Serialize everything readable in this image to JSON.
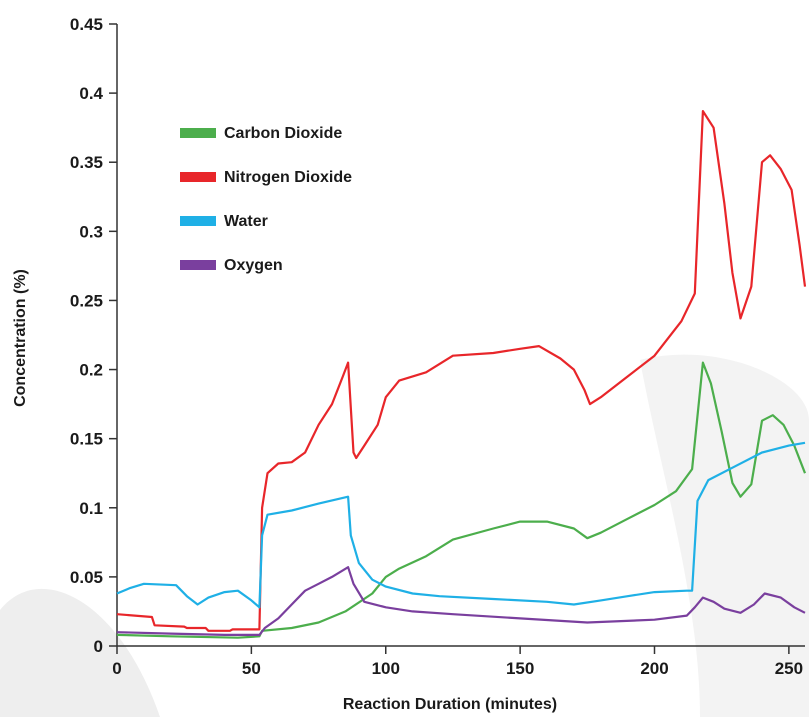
{
  "chart_data": {
    "type": "line",
    "title": "",
    "xlabel": "Reaction Duration (minutes)",
    "ylabel": "Concentration (%)",
    "xlim": [
      0,
      256
    ],
    "ylim": [
      0,
      0.45
    ],
    "x_ticks": [
      0,
      50,
      100,
      150,
      200,
      250
    ],
    "y_ticks": [
      0,
      0.05,
      0.1,
      0.15,
      0.2,
      0.25,
      0.3,
      0.35,
      0.4,
      0.45
    ],
    "x_tick_labels": [
      "0",
      "50",
      "100",
      "150",
      "200",
      "250"
    ],
    "y_tick_labels": [
      "0",
      "0.05",
      "0.1",
      "0.15",
      "0.2",
      "0.25",
      "0.3",
      "0.35",
      "0.4",
      "0.45"
    ],
    "grid": false,
    "legend_position": "top-left",
    "series": [
      {
        "name": "Carbon Dioxide",
        "color": "#4cae4c",
        "points": [
          [
            0,
            0.008
          ],
          [
            20,
            0.007
          ],
          [
            45,
            0.006
          ],
          [
            53,
            0.007
          ],
          [
            54,
            0.011
          ],
          [
            65,
            0.013
          ],
          [
            75,
            0.017
          ],
          [
            85,
            0.025
          ],
          [
            95,
            0.038
          ],
          [
            100,
            0.05
          ],
          [
            105,
            0.056
          ],
          [
            115,
            0.065
          ],
          [
            125,
            0.077
          ],
          [
            140,
            0.085
          ],
          [
            150,
            0.09
          ],
          [
            160,
            0.09
          ],
          [
            170,
            0.085
          ],
          [
            175,
            0.078
          ],
          [
            180,
            0.082
          ],
          [
            190,
            0.092
          ],
          [
            200,
            0.102
          ],
          [
            208,
            0.112
          ],
          [
            214,
            0.128
          ],
          [
            218,
            0.205
          ],
          [
            221,
            0.19
          ],
          [
            225,
            0.155
          ],
          [
            229,
            0.118
          ],
          [
            232,
            0.108
          ],
          [
            236,
            0.117
          ],
          [
            240,
            0.163
          ],
          [
            244,
            0.167
          ],
          [
            248,
            0.16
          ],
          [
            252,
            0.145
          ],
          [
            256,
            0.125
          ]
        ]
      },
      {
        "name": "Nitrogen Dioxide",
        "color": "#e8262a",
        "points": [
          [
            0,
            0.023
          ],
          [
            13,
            0.021
          ],
          [
            14,
            0.015
          ],
          [
            25,
            0.014
          ],
          [
            26,
            0.013
          ],
          [
            33,
            0.013
          ],
          [
            34,
            0.011
          ],
          [
            42,
            0.011
          ],
          [
            43,
            0.012
          ],
          [
            53,
            0.012
          ],
          [
            54,
            0.1
          ],
          [
            56,
            0.125
          ],
          [
            60,
            0.132
          ],
          [
            65,
            0.133
          ],
          [
            70,
            0.14
          ],
          [
            75,
            0.16
          ],
          [
            80,
            0.175
          ],
          [
            84,
            0.195
          ],
          [
            86,
            0.205
          ],
          [
            88,
            0.14
          ],
          [
            89,
            0.136
          ],
          [
            92,
            0.145
          ],
          [
            97,
            0.16
          ],
          [
            100,
            0.18
          ],
          [
            105,
            0.192
          ],
          [
            115,
            0.198
          ],
          [
            125,
            0.21
          ],
          [
            140,
            0.212
          ],
          [
            150,
            0.215
          ],
          [
            157,
            0.217
          ],
          [
            165,
            0.208
          ],
          [
            170,
            0.2
          ],
          [
            174,
            0.185
          ],
          [
            176,
            0.175
          ],
          [
            180,
            0.18
          ],
          [
            190,
            0.195
          ],
          [
            200,
            0.21
          ],
          [
            210,
            0.235
          ],
          [
            215,
            0.255
          ],
          [
            218,
            0.387
          ],
          [
            222,
            0.375
          ],
          [
            226,
            0.32
          ],
          [
            229,
            0.27
          ],
          [
            232,
            0.237
          ],
          [
            236,
            0.26
          ],
          [
            240,
            0.35
          ],
          [
            243,
            0.355
          ],
          [
            247,
            0.345
          ],
          [
            251,
            0.33
          ],
          [
            254,
            0.29
          ],
          [
            256,
            0.26
          ]
        ]
      },
      {
        "name": "Water",
        "color": "#1fb0e6",
        "points": [
          [
            0,
            0.038
          ],
          [
            5,
            0.042
          ],
          [
            10,
            0.045
          ],
          [
            22,
            0.044
          ],
          [
            26,
            0.036
          ],
          [
            30,
            0.03
          ],
          [
            34,
            0.035
          ],
          [
            40,
            0.039
          ],
          [
            45,
            0.04
          ],
          [
            50,
            0.033
          ],
          [
            53,
            0.028
          ],
          [
            54,
            0.08
          ],
          [
            56,
            0.095
          ],
          [
            65,
            0.098
          ],
          [
            75,
            0.103
          ],
          [
            86,
            0.108
          ],
          [
            87,
            0.08
          ],
          [
            90,
            0.06
          ],
          [
            95,
            0.048
          ],
          [
            100,
            0.043
          ],
          [
            110,
            0.038
          ],
          [
            120,
            0.036
          ],
          [
            140,
            0.034
          ],
          [
            160,
            0.032
          ],
          [
            170,
            0.03
          ],
          [
            180,
            0.033
          ],
          [
            190,
            0.036
          ],
          [
            200,
            0.039
          ],
          [
            212,
            0.04
          ],
          [
            214,
            0.04
          ],
          [
            216,
            0.105
          ],
          [
            220,
            0.12
          ],
          [
            230,
            0.13
          ],
          [
            240,
            0.14
          ],
          [
            250,
            0.145
          ],
          [
            256,
            0.147
          ]
        ]
      },
      {
        "name": "Oxygen",
        "color": "#7a3f9e",
        "points": [
          [
            0,
            0.01
          ],
          [
            20,
            0.009
          ],
          [
            40,
            0.008
          ],
          [
            53,
            0.008
          ],
          [
            55,
            0.013
          ],
          [
            60,
            0.02
          ],
          [
            65,
            0.03
          ],
          [
            70,
            0.04
          ],
          [
            75,
            0.045
          ],
          [
            80,
            0.05
          ],
          [
            86,
            0.057
          ],
          [
            88,
            0.045
          ],
          [
            92,
            0.032
          ],
          [
            100,
            0.028
          ],
          [
            110,
            0.025
          ],
          [
            125,
            0.023
          ],
          [
            150,
            0.02
          ],
          [
            175,
            0.017
          ],
          [
            200,
            0.019
          ],
          [
            212,
            0.022
          ],
          [
            215,
            0.028
          ],
          [
            218,
            0.035
          ],
          [
            222,
            0.032
          ],
          [
            226,
            0.027
          ],
          [
            232,
            0.024
          ],
          [
            237,
            0.03
          ],
          [
            241,
            0.038
          ],
          [
            247,
            0.035
          ],
          [
            252,
            0.028
          ],
          [
            256,
            0.024
          ]
        ]
      }
    ]
  }
}
